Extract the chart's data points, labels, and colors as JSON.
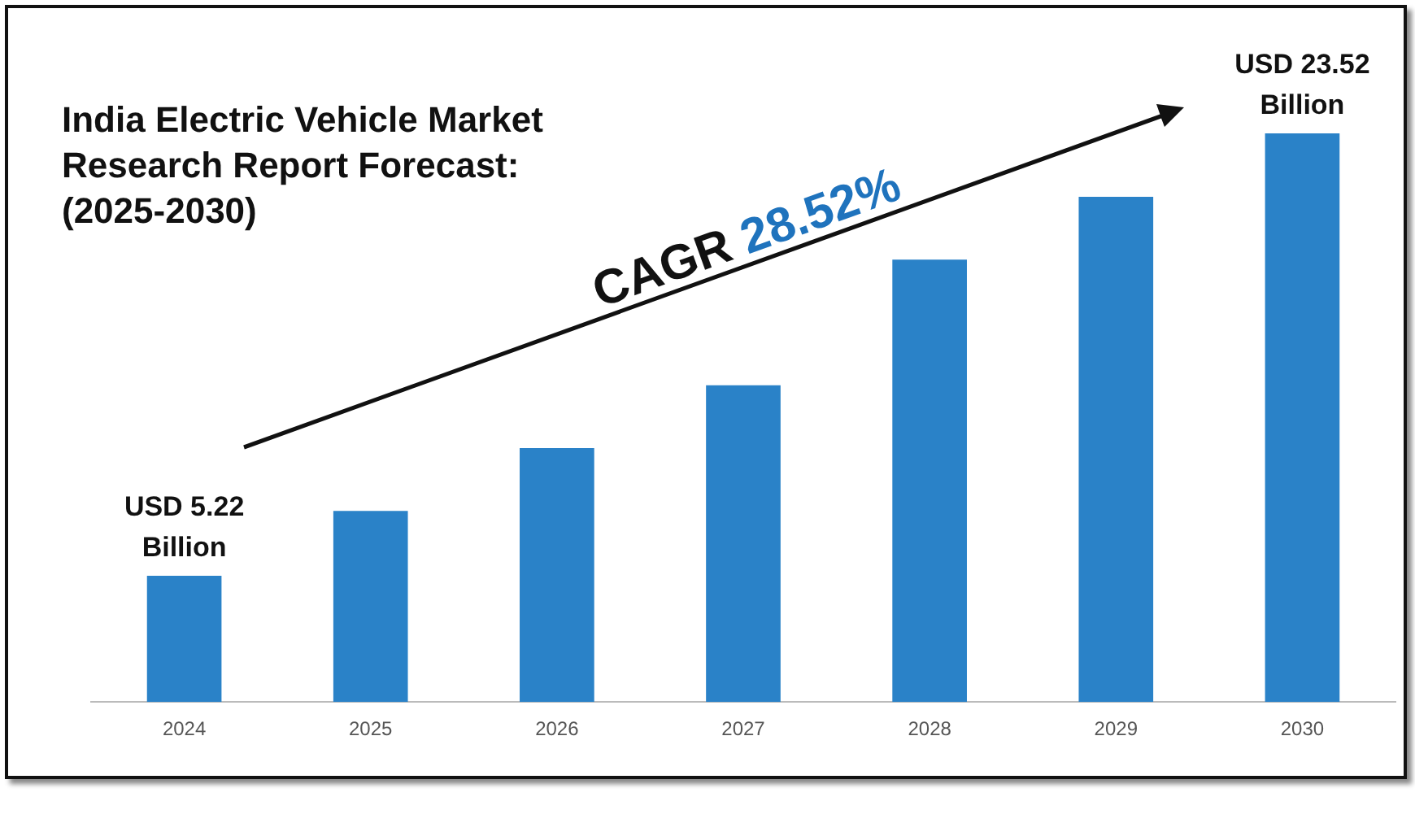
{
  "chart_data": {
    "type": "bar",
    "title": "India Electric Vehicle Market Research Report Forecast: (2025-2030)",
    "categories": [
      "2024",
      "2025",
      "2026",
      "2027",
      "2028",
      "2029",
      "2030"
    ],
    "values": [
      5.22,
      7.9,
      10.5,
      13.1,
      18.3,
      20.9,
      23.52
    ],
    "value_labels": [
      "USD 5.22 Billion",
      null,
      null,
      null,
      null,
      null,
      "USD 23.52 Billion"
    ],
    "color": "#2a82c8",
    "tick_labels": "x",
    "grid": false,
    "legend": false,
    "annotations": [
      "CAGR 28.52%"
    ]
  }
}
